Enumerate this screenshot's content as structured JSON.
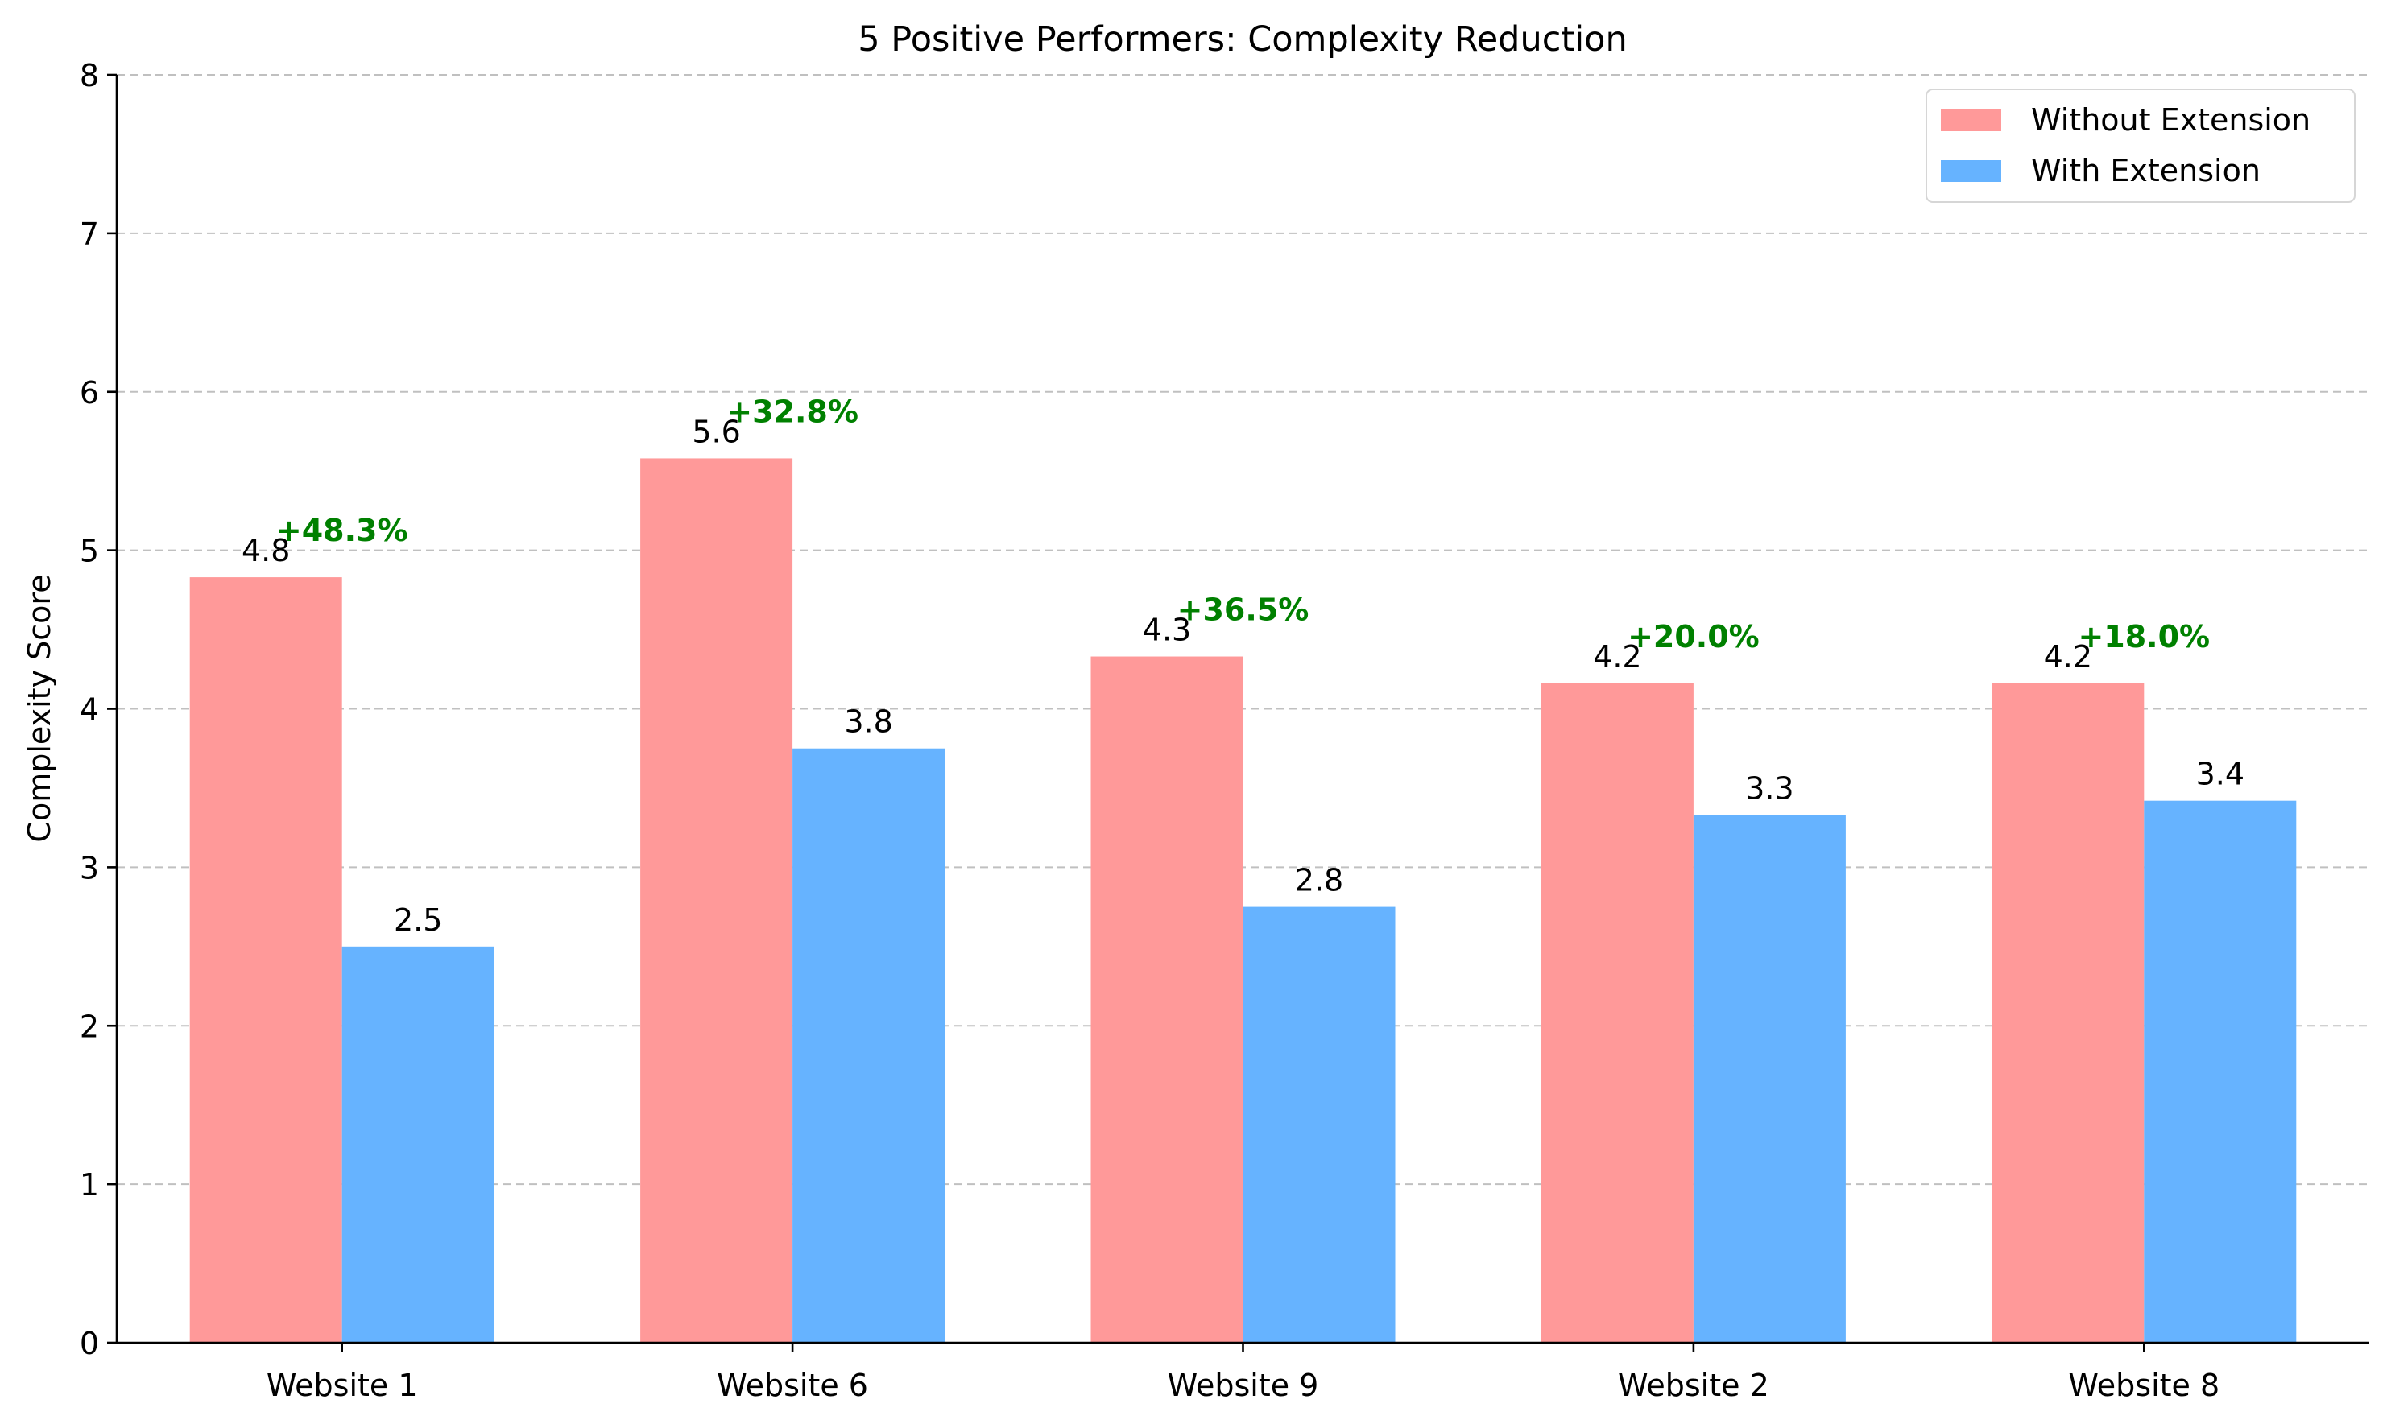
{
  "chart_data": {
    "type": "bar",
    "title": "5 Positive Performers: Complexity Reduction",
    "xlabel": "",
    "ylabel": "Complexity Score",
    "ylim": [
      0,
      8
    ],
    "yticks": [
      0,
      1,
      2,
      3,
      4,
      5,
      6,
      7,
      8
    ],
    "grid": "y-dashed",
    "legend_position": "top-right",
    "categories": [
      "Website 1",
      "Website 6",
      "Website 9",
      "Website 2",
      "Website 8"
    ],
    "series": [
      {
        "name": "Without Extension",
        "color": "#ff9999",
        "values": [
          4.83,
          5.58,
          4.33,
          4.16,
          4.16
        ],
        "labels": [
          "4.8",
          "5.6",
          "4.3",
          "4.2",
          "4.2"
        ]
      },
      {
        "name": "With Extension",
        "color": "#66b3ff",
        "values": [
          2.5,
          3.75,
          2.75,
          3.33,
          3.42
        ],
        "labels": [
          "2.5",
          "3.8",
          "2.8",
          "3.3",
          "3.4"
        ]
      }
    ],
    "improvement_labels": [
      "+48.3%",
      "+32.8%",
      "+36.5%",
      "+20.0%",
      "+18.0%"
    ],
    "improvement_color": "#008000"
  }
}
